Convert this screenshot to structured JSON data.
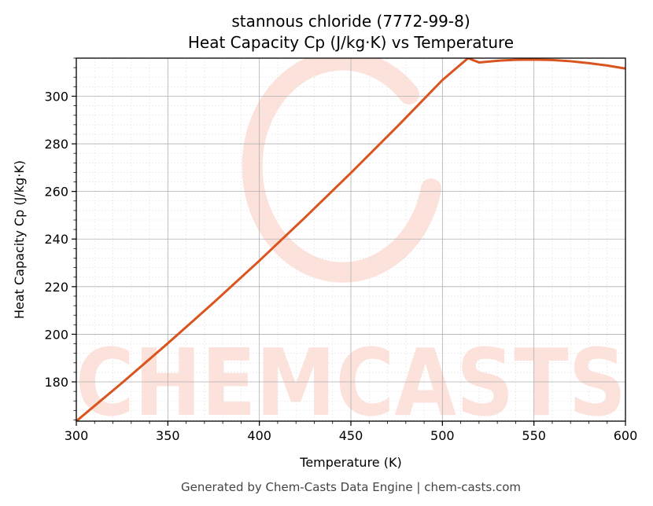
{
  "chart_data": {
    "type": "line",
    "title": "stannous chloride (7772-99-8)",
    "subtitle": "Heat Capacity Cp (J/kg·K) vs Temperature",
    "xlabel": "Temperature (K)",
    "ylabel": "Heat Capacity Cp (J/kg·K)",
    "xlim": [
      300,
      600
    ],
    "ylim": [
      163.5,
      316
    ],
    "x_ticks": [
      300,
      350,
      400,
      450,
      500,
      550,
      600
    ],
    "y_ticks": [
      180,
      200,
      220,
      240,
      260,
      280,
      300
    ],
    "grid": true,
    "minor_grid": true,
    "legend": "none",
    "series": [
      {
        "color": "#d9541e",
        "x": [
          300,
          325,
          350,
          375,
          400,
          425,
          450,
          475,
          500,
          514,
          520,
          530,
          540,
          550,
          560,
          570,
          580,
          590,
          600
        ],
        "y": [
          163.5,
          179.6,
          196.2,
          213.3,
          230.9,
          249.1,
          267.8,
          287.0,
          306.8,
          316.0,
          314.2,
          314.9,
          315.3,
          315.4,
          315.2,
          314.7,
          313.9,
          312.9,
          311.6
        ]
      }
    ]
  },
  "watermark": {
    "text": "CHEMCASTS",
    "color": "#fde2dc"
  },
  "footer": "Generated by Chem-Casts Data Engine | chem-casts.com"
}
